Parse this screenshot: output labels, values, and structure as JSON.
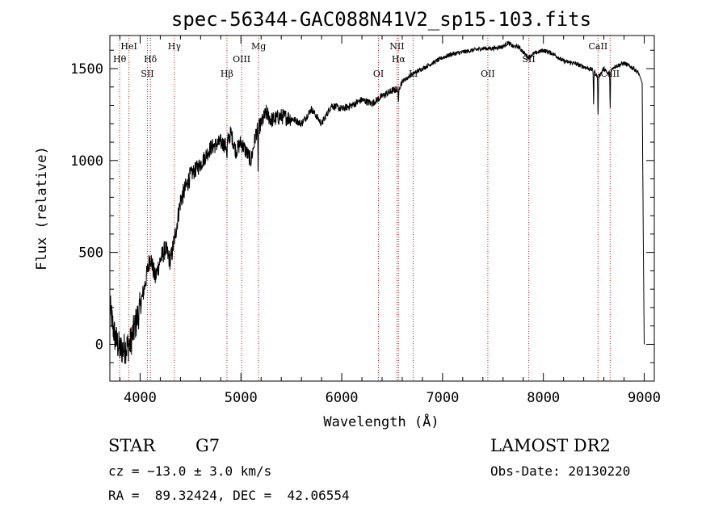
{
  "chart_data": {
    "type": "line",
    "title": "spec-56344-GAC088N41V2_sp15-103.fits",
    "xlabel": "Wavelength (Å)",
    "ylabel": "Flux (relative)",
    "xlim": [
      3700,
      9100
    ],
    "ylim": [
      -200,
      1680
    ],
    "x_ticks": [
      4000,
      5000,
      6000,
      7000,
      8000,
      9000
    ],
    "y_ticks": [
      0,
      500,
      1000,
      1500
    ],
    "grid": false,
    "line_color": "#000000",
    "marker_color": "#b22222",
    "spectrum_anchors": {
      "x": [
        3700,
        3750,
        3800,
        3850,
        3900,
        3950,
        4000,
        4050,
        4100,
        4150,
        4200,
        4250,
        4300,
        4350,
        4400,
        4450,
        4500,
        4600,
        4700,
        4800,
        4850,
        4900,
        4950,
        5000,
        5050,
        5100,
        5150,
        5200,
        5250,
        5300,
        5400,
        5500,
        5600,
        5700,
        5800,
        5900,
        6000,
        6100,
        6200,
        6300,
        6400,
        6500,
        6560,
        6600,
        6700,
        6800,
        6900,
        7000,
        7100,
        7200,
        7300,
        7400,
        7500,
        7600,
        7650,
        7700,
        7750,
        7800,
        7850,
        7900,
        8000,
        8100,
        8200,
        8300,
        8400,
        8500,
        8540,
        8600,
        8640,
        8700,
        8800,
        8900,
        8950,
        8980,
        8990,
        9000
      ],
      "y": [
        200,
        40,
        -30,
        -20,
        0,
        100,
        200,
        330,
        480,
        360,
        460,
        520,
        450,
        600,
        780,
        850,
        920,
        980,
        1070,
        1100,
        1080,
        1150,
        1050,
        1100,
        1050,
        1000,
        1150,
        1200,
        1260,
        1220,
        1240,
        1230,
        1200,
        1280,
        1200,
        1300,
        1280,
        1300,
        1330,
        1310,
        1350,
        1380,
        1390,
        1430,
        1470,
        1500,
        1530,
        1560,
        1580,
        1590,
        1600,
        1610,
        1610,
        1620,
        1640,
        1620,
        1620,
        1590,
        1560,
        1580,
        1600,
        1580,
        1540,
        1530,
        1510,
        1490,
        1450,
        1500,
        1470,
        1510,
        1530,
        1500,
        1470,
        1420,
        600,
        0
      ]
    },
    "absorption_lines": [
      {
        "x": 6563,
        "depth": 100
      },
      {
        "x": 8498,
        "depth": 200
      },
      {
        "x": 8542,
        "depth": 230
      },
      {
        "x": 8662,
        "depth": 220
      },
      {
        "x": 5170,
        "depth": 200
      },
      {
        "x": 4861,
        "depth": 110
      }
    ],
    "line_markers": [
      {
        "x": 3797,
        "label": "Hθ",
        "row": 2
      },
      {
        "x": 3889,
        "label": "HeI",
        "row": 1
      },
      {
        "x": 4072,
        "label": "SII",
        "row": 3
      },
      {
        "x": 4102,
        "label": "Hδ",
        "row": 2
      },
      {
        "x": 4340,
        "label": "Hγ",
        "row": 1
      },
      {
        "x": 4861,
        "label": "Hβ",
        "row": 3
      },
      {
        "x": 5007,
        "label": "OIII",
        "row": 2
      },
      {
        "x": 5175,
        "label": "Mg",
        "row": 1
      },
      {
        "x": 6364,
        "label": "OI",
        "row": 3
      },
      {
        "x": 6548,
        "label": "NII",
        "row": 1
      },
      {
        "x": 6563,
        "label": "Hα",
        "row": 2
      },
      {
        "x": 6708,
        "label": "Li",
        "row": 3
      },
      {
        "x": 7449,
        "label": "OII",
        "row": 3
      },
      {
        "x": 7855,
        "label": "SII",
        "row": 2
      },
      {
        "x": 8542,
        "label": "CaII",
        "row": 1
      },
      {
        "x": 8662,
        "label": "CaII",
        "row": 3
      }
    ]
  },
  "info": {
    "class_label": "STAR",
    "subclass": "G7",
    "cz": "cz = −13.0 ± 3.0 km/s",
    "coords": "RA =  89.32424, DEC =  42.06554",
    "survey": "LAMOST DR2",
    "obs_date": "Obs-Date: 20130220"
  }
}
